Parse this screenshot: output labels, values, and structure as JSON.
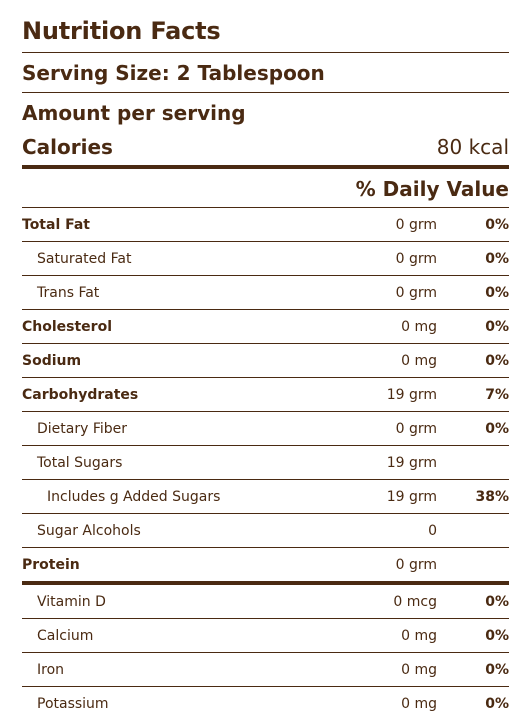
{
  "label": {
    "title": "Nutrition Facts",
    "serving_size": "Serving Size: 2 Tablespoon",
    "amount_per_serving": "Amount per serving",
    "calories_label": "Calories",
    "calories_value": "80 kcal",
    "daily_value_header": "% Daily Value"
  },
  "nutrients": [
    {
      "name": "Total Fat",
      "amount": "0 grm",
      "dv": "0%"
    },
    {
      "name": "Saturated Fat",
      "amount": "0 grm",
      "dv": "0%"
    },
    {
      "name": "Trans Fat",
      "amount": "0 grm",
      "dv": "0%"
    },
    {
      "name": "Cholesterol",
      "amount": "0 mg",
      "dv": "0%"
    },
    {
      "name": "Sodium",
      "amount": "0 mg",
      "dv": "0%"
    },
    {
      "name": "Carbohydrates",
      "amount": "19 grm",
      "dv": "7%"
    },
    {
      "name": "Dietary Fiber",
      "amount": "0 grm",
      "dv": "0%"
    },
    {
      "name": "Total Sugars",
      "amount": "19 grm",
      "dv": ""
    },
    {
      "name": "Includes g Added Sugars",
      "amount": "19 grm",
      "dv": "38%"
    },
    {
      "name": "Sugar Alcohols",
      "amount": "0",
      "dv": ""
    },
    {
      "name": "Protein",
      "amount": "0 grm",
      "dv": ""
    }
  ],
  "vitamins": [
    {
      "name": "Vitamin D",
      "amount": "0 mcg",
      "dv": "0%"
    },
    {
      "name": "Calcium",
      "amount": "0 mg",
      "dv": "0%"
    },
    {
      "name": "Iron",
      "amount": "0 mg",
      "dv": "0%"
    },
    {
      "name": "Potassium",
      "amount": "0 mg",
      "dv": "0%"
    }
  ],
  "colors": {
    "text": "#4a2a12",
    "rule": "#4a2a12",
    "background": "#ffffff"
  }
}
